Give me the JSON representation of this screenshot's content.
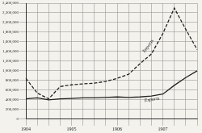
{
  "chart_data": {
    "type": "line",
    "categories": [
      "1904",
      null,
      null,
      null,
      "1905",
      null,
      null,
      null,
      "1906",
      null,
      null,
      null,
      "1907",
      null,
      null,
      null
    ],
    "series": [
      {
        "name": "Imports",
        "color": "#222222",
        "line_style": "dashed",
        "values": [
          845000,
          540000,
          420000,
          675000,
          710000,
          730000,
          745000,
          780000,
          845000,
          930000,
          1150000,
          1350000,
          1775000,
          2300000,
          1860000,
          1440000
        ]
      },
      {
        "name": "Exports",
        "color": "#222222",
        "line_style": "solid",
        "values": [
          420000,
          440000,
          400000,
          420000,
          430000,
          440000,
          440000,
          450000,
          460000,
          450000,
          460000,
          480000,
          520000,
          700000,
          860000,
          1000000
        ]
      }
    ],
    "ylim": [
      0,
      2400000
    ],
    "yticks": [
      0,
      {
        "value": 200000,
        "label": "200,000"
      },
      {
        "value": 400000,
        "label": "400,000"
      },
      {
        "value": 600000,
        "label": "600,000"
      },
      {
        "value": 800000,
        "label": "800,000"
      },
      {
        "value": 1000000,
        "label": "1,000,000"
      },
      {
        "value": 1200000,
        "label": "1,200,000"
      },
      {
        "value": 1400000,
        "label": "1,400,000"
      },
      {
        "value": 1600000,
        "label": "1,600,000"
      },
      {
        "value": 1800000,
        "label": "1,800,000"
      },
      {
        "value": 2000000,
        "label": "2,000,000"
      },
      {
        "value": 2200000,
        "label": "2,200,000"
      },
      {
        "value": 2400000,
        "label": "2,400,000"
      }
    ],
    "grid": true
  }
}
